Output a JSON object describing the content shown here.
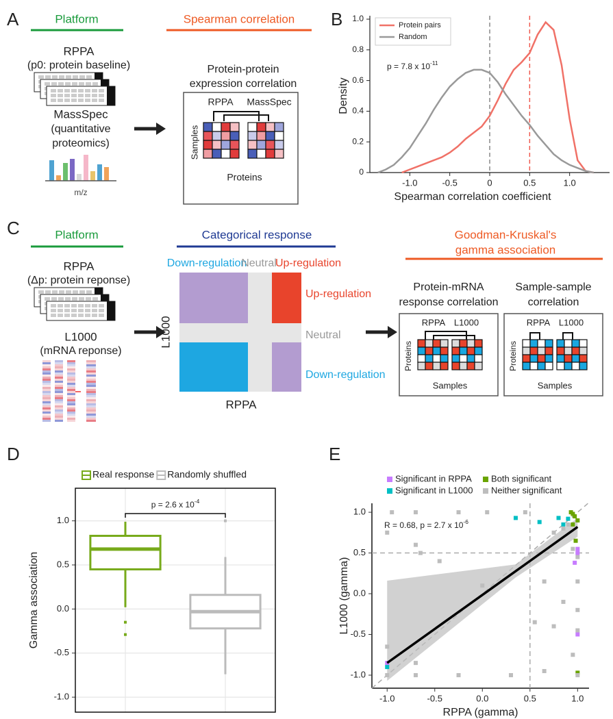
{
  "panel_labels": [
    "A",
    "B",
    "C",
    "D",
    "E"
  ],
  "panel_a": {
    "platform": "Platform",
    "method": "Spearman correlation",
    "rppa": "RPPA",
    "rppa_sub": "(p0: protein baseline)",
    "massspec": "MassSpec",
    "massspec_sub1": "(quantitative",
    "massspec_sub2": "proteomics)",
    "mz": "m/z",
    "box_title1": "Protein-protein",
    "box_title2": "expression correlation",
    "col1": "RPPA",
    "col2": "MassSpec",
    "rows": "Samples",
    "cols": "Proteins"
  },
  "panel_c": {
    "platform": "Platform",
    "categorical": "Categorical response",
    "method1": "Goodman-Kruskal's",
    "method2": "gamma association",
    "rppa": "RPPA",
    "rppa_sub": "(Δp: protein reponse)",
    "l1000": "L1000",
    "l1000_sub": "(mRNA reponse)",
    "top_down": "Down-regulation",
    "top_neutral": "Neutral",
    "top_up": "Up-regulation",
    "right_up": "Up-regulation",
    "right_neutral": "Neutral",
    "right_down": "Down-regulation",
    "y_axis": "L1000",
    "x_axis": "RPPA",
    "box1_title1": "Protein-mRNA",
    "box1_title2": "response correlation",
    "box2_title1": "Sample-sample",
    "box2_title2": "correlation",
    "box1_col1": "RPPA",
    "box1_col2": "L1000",
    "box1_rows": "Proteins",
    "box1_cols": "Samples",
    "box2_col1": "RPPA",
    "box2_col2": "L1000",
    "box2_rows": "Proteins",
    "box2_cols": "Samples"
  },
  "chart_data": [
    {
      "type": "line",
      "xlabel": "Spearman correlation coefficient",
      "ylabel": "Density",
      "annotation": {
        "text": "p = 7.8 x 10",
        "exponent": "-11"
      },
      "x": [
        -1.4,
        -1.3,
        -1.2,
        -1.1,
        -1.0,
        -0.9,
        -0.8,
        -0.7,
        -0.6,
        -0.5,
        -0.4,
        -0.3,
        -0.2,
        -0.1,
        0,
        0.1,
        0.2,
        0.3,
        0.4,
        0.5,
        0.6,
        0.7,
        0.8,
        0.9,
        1.0,
        1.1,
        1.2,
        1.3
      ],
      "series": [
        {
          "name": "Protein pairs",
          "color": "#f07167",
          "values": [
            null,
            null,
            null,
            0.0,
            0.02,
            0.04,
            0.06,
            0.08,
            0.1,
            0.13,
            0.17,
            0.22,
            0.26,
            0.3,
            0.37,
            0.47,
            0.58,
            0.67,
            0.72,
            0.78,
            0.9,
            0.98,
            0.93,
            0.7,
            0.35,
            0.08,
            0.01,
            0.0
          ]
        },
        {
          "name": "Random",
          "color": "#999999",
          "values": [
            0.0,
            0.02,
            0.05,
            0.1,
            0.16,
            0.24,
            0.32,
            0.41,
            0.49,
            0.56,
            0.61,
            0.65,
            0.67,
            0.67,
            0.65,
            0.59,
            0.51,
            0.44,
            0.37,
            0.31,
            0.24,
            0.18,
            0.12,
            0.08,
            0.05,
            0.03,
            0.01,
            0.0
          ]
        }
      ],
      "vlines": [
        {
          "x": 0,
          "color": "#888888"
        },
        {
          "x": 0.5,
          "color": "#f05a50"
        }
      ],
      "xlim": [
        -1.5,
        1.5
      ],
      "ylim": [
        0,
        1.0
      ],
      "xticks": [
        {
          "value": -1.0,
          "label": "-1.0"
        },
        -0.5,
        0,
        0.5,
        {
          "value": 1.0,
          "label": "1.0"
        }
      ],
      "yticks": [
        0,
        0.2,
        0.4,
        0.6,
        0.8,
        {
          "value": 1.0,
          "label": "1.0"
        }
      ],
      "legend": "top-left"
    },
    {
      "type": "box",
      "ylabel": "Gamma association",
      "annotation": {
        "text": "p = 2.6 x 10",
        "exponent": "-4"
      },
      "series": [
        {
          "name": "Real response",
          "color": "#77aa1a",
          "q1": 0.45,
          "median": 0.68,
          "q3": 0.83,
          "whisker_low": 0.02,
          "whisker_high": 0.99,
          "outliers": [
            -0.15,
            -0.29
          ]
        },
        {
          "name": "Randomly shuffled",
          "color": "#bbbbbb",
          "q1": -0.22,
          "median": -0.03,
          "q3": 0.16,
          "whisker_low": -0.74,
          "whisker_high": 0.59,
          "outliers": [
            1.0
          ]
        }
      ],
      "ylim": [
        -1.17,
        1.37
      ],
      "yticks": [
        {
          "value": -1.0,
          "label": "-1.0"
        },
        -0.5,
        {
          "value": 0.0,
          "label": "0.0"
        },
        0.5,
        {
          "value": 1.0,
          "label": "1.0"
        }
      ],
      "grid": true,
      "legend": "top"
    },
    {
      "type": "scatter",
      "xlabel": "RPPA (gamma)",
      "ylabel": "L1000 (gamma)",
      "annotation": {
        "text": "R = 0.68, p = 2.7 x 10",
        "exponent": "-6"
      },
      "series": [
        {
          "name": "Significant in RPPA",
          "color": "#c77cff",
          "x": [
            -1.0,
            0.97,
            1.0,
            1.0,
            1.0
          ],
          "values": [
            -0.85,
            0.38,
            0.5,
            -0.5,
            0.55
          ]
        },
        {
          "name": "Both significant",
          "color": "#6aa400",
          "x": [
            0.93,
            0.95,
            0.97,
            1.0,
            0.95,
            1.0,
            0.98
          ],
          "values": [
            1.0,
            0.98,
            0.95,
            0.9,
            0.85,
            -0.97,
            0.65
          ]
        },
        {
          "name": "Significant in L1000",
          "color": "#00bfc4",
          "x": [
            -1.0,
            0.35,
            0.6,
            0.8,
            0.85,
            0.9
          ],
          "values": [
            -0.9,
            0.93,
            0.88,
            0.93,
            0.85,
            0.92
          ]
        },
        {
          "name": "Neither significant",
          "color": "#bdbdbd",
          "x": [
            -1.0,
            -0.95,
            -0.7,
            -0.7,
            -0.65,
            -0.25,
            0.05,
            0.45,
            -1.0,
            -0.7,
            -0.7,
            -0.25,
            0.3,
            0.55,
            0.65,
            0.75,
            0.85,
            0.9,
            0.95,
            1.0,
            1.0,
            1.0,
            1.0,
            0.95,
            1.0,
            0.85,
            0.75,
            0.65,
            -0.45,
            0.0,
            -1.0
          ],
          "values": [
            0.75,
            1.0,
            1.0,
            0.6,
            0.5,
            1.0,
            1.0,
            1.0,
            -0.65,
            -0.85,
            -1.0,
            -1.0,
            -1.0,
            -0.35,
            0.15,
            0.75,
            0.8,
            0.85,
            0.55,
            0.45,
            0.15,
            -0.2,
            -0.45,
            -0.75,
            -1.0,
            -0.1,
            -0.4,
            -0.95,
            0.4,
            0.1,
            -1.0
          ]
        }
      ],
      "fit": {
        "x": [
          -1.0,
          0.35,
          1.0
        ],
        "y": [
          -0.85,
          0.277,
          0.82
        ],
        "ci_upper": [
          0.16,
          0.36,
          0.93
        ],
        "ci_lower": [
          -1.07,
          0.2,
          0.7
        ]
      },
      "reference_lines": {
        "x": 0.5,
        "y": 0.5,
        "diagonal": true
      },
      "xlim": [
        -1.16,
        1.12
      ],
      "ylim": [
        -1.16,
        1.11
      ],
      "xticks": [
        {
          "value": -1.0,
          "label": "-1.0"
        },
        -0.5,
        {
          "value": 0.0,
          "label": "0.0"
        },
        0.5,
        {
          "value": 1.0,
          "label": "1.0"
        }
      ],
      "yticks": [
        {
          "value": -1.0,
          "label": "-1.0"
        },
        -0.5,
        {
          "value": 0.0,
          "label": "0.0"
        },
        0.5,
        {
          "value": 1.0,
          "label": "1.0"
        }
      ],
      "legend": "top"
    }
  ]
}
